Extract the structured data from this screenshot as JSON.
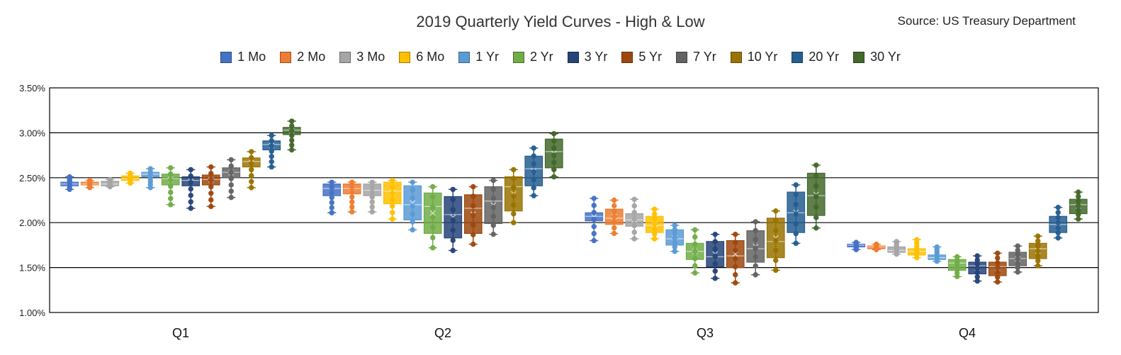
{
  "chart_data": {
    "type": "box",
    "title": "2019 Quarterly Yield Curves - High & Low",
    "source": "Source: US Treasury Department",
    "categories": [
      "Q1",
      "Q2",
      "Q3",
      "Q4"
    ],
    "ylim": [
      1.0,
      3.5
    ],
    "yticks": [
      1.0,
      1.5,
      2.0,
      2.5,
      3.0,
      3.5
    ],
    "ytick_labels": [
      "1.00%",
      "1.50%",
      "2.00%",
      "2.50%",
      "3.00%",
      "3.50%"
    ],
    "grid": true,
    "legend_position": "top",
    "series": [
      {
        "name": "1 Mo",
        "color": "#4472C4",
        "boxes": [
          {
            "min": 2.37,
            "q1": 2.41,
            "median": 2.43,
            "q3": 2.45,
            "max": 2.51
          },
          {
            "min": 2.11,
            "q1": 2.3,
            "median": 2.38,
            "q3": 2.43,
            "max": 2.45
          },
          {
            "min": 1.8,
            "q1": 2.02,
            "median": 2.07,
            "q3": 2.11,
            "max": 2.27
          },
          {
            "min": 1.7,
            "q1": 1.73,
            "median": 1.75,
            "q3": 1.76,
            "max": 1.78
          }
        ]
      },
      {
        "name": "2 Mo",
        "color": "#ED7D31",
        "boxes": [
          {
            "min": 2.39,
            "q1": 2.42,
            "median": 2.43,
            "q3": 2.45,
            "max": 2.47
          },
          {
            "min": 2.12,
            "q1": 2.32,
            "median": 2.38,
            "q3": 2.43,
            "max": 2.45
          },
          {
            "min": 1.88,
            "q1": 1.98,
            "median": 2.05,
            "q3": 2.15,
            "max": 2.25
          },
          {
            "min": 1.7,
            "q1": 1.71,
            "median": 1.73,
            "q3": 1.74,
            "max": 1.76
          }
        ]
      },
      {
        "name": "3 Mo",
        "color": "#A5A5A5",
        "boxes": [
          {
            "min": 2.4,
            "q1": 2.41,
            "median": 2.43,
            "q3": 2.46,
            "max": 2.48
          },
          {
            "min": 2.12,
            "q1": 2.3,
            "median": 2.36,
            "q3": 2.43,
            "max": 2.45
          },
          {
            "min": 1.82,
            "q1": 1.96,
            "median": 2.03,
            "q3": 2.1,
            "max": 2.26
          },
          {
            "min": 1.65,
            "q1": 1.67,
            "median": 1.69,
            "q3": 1.73,
            "max": 1.79
          }
        ]
      },
      {
        "name": "6 Mo",
        "color": "#FFC000",
        "boxes": [
          {
            "min": 2.44,
            "q1": 2.47,
            "median": 2.49,
            "q3": 2.52,
            "max": 2.55
          },
          {
            "min": 2.04,
            "q1": 2.21,
            "median": 2.35,
            "q3": 2.45,
            "max": 2.47
          },
          {
            "min": 1.82,
            "q1": 1.89,
            "median": 1.97,
            "q3": 2.07,
            "max": 2.15
          },
          {
            "min": 1.61,
            "q1": 1.64,
            "median": 1.68,
            "q3": 1.71,
            "max": 1.81
          }
        ]
      },
      {
        "name": "1 Yr",
        "color": "#5B9BD5",
        "boxes": [
          {
            "min": 2.39,
            "q1": 2.51,
            "median": 2.54,
            "q3": 2.56,
            "max": 2.6
          },
          {
            "min": 1.92,
            "q1": 2.03,
            "median": 2.2,
            "q3": 2.41,
            "max": 2.45
          },
          {
            "min": 1.68,
            "q1": 1.75,
            "median": 1.82,
            "q3": 1.92,
            "max": 1.97
          },
          {
            "min": 1.57,
            "q1": 1.59,
            "median": 1.61,
            "q3": 1.64,
            "max": 1.73
          }
        ]
      },
      {
        "name": "2 Yr",
        "color": "#70AD47",
        "boxes": [
          {
            "min": 2.2,
            "q1": 2.42,
            "median": 2.49,
            "q3": 2.54,
            "max": 2.61
          },
          {
            "min": 1.72,
            "q1": 1.88,
            "median": 2.18,
            "q3": 2.33,
            "max": 2.4
          },
          {
            "min": 1.44,
            "q1": 1.59,
            "median": 1.68,
            "q3": 1.77,
            "max": 1.92
          },
          {
            "min": 1.4,
            "q1": 1.47,
            "median": 1.55,
            "q3": 1.59,
            "max": 1.62
          }
        ]
      },
      {
        "name": "3 Yr",
        "color": "#264478",
        "boxes": [
          {
            "min": 2.16,
            "q1": 2.41,
            "median": 2.47,
            "q3": 2.51,
            "max": 2.59
          },
          {
            "min": 1.69,
            "q1": 1.83,
            "median": 2.09,
            "q3": 2.29,
            "max": 2.37
          },
          {
            "min": 1.38,
            "q1": 1.51,
            "median": 1.62,
            "q3": 1.79,
            "max": 1.87
          },
          {
            "min": 1.35,
            "q1": 1.43,
            "median": 1.52,
            "q3": 1.56,
            "max": 1.63
          }
        ]
      },
      {
        "name": "5 Yr",
        "color": "#9E480E",
        "boxes": [
          {
            "min": 2.18,
            "q1": 2.42,
            "median": 2.48,
            "q3": 2.53,
            "max": 2.62
          },
          {
            "min": 1.76,
            "q1": 1.88,
            "median": 2.16,
            "q3": 2.31,
            "max": 2.4
          },
          {
            "min": 1.33,
            "q1": 1.5,
            "median": 1.63,
            "q3": 1.8,
            "max": 1.87
          },
          {
            "min": 1.34,
            "q1": 1.41,
            "median": 1.51,
            "q3": 1.56,
            "max": 1.66
          }
        ]
      },
      {
        "name": "7 Yr",
        "color": "#636363",
        "boxes": [
          {
            "min": 2.28,
            "q1": 2.5,
            "median": 2.56,
            "q3": 2.61,
            "max": 2.7
          },
          {
            "min": 1.87,
            "q1": 1.99,
            "median": 2.24,
            "q3": 2.4,
            "max": 2.47
          },
          {
            "min": 1.42,
            "q1": 1.56,
            "median": 1.71,
            "q3": 1.91,
            "max": 2.01
          },
          {
            "min": 1.45,
            "q1": 1.52,
            "median": 1.6,
            "q3": 1.67,
            "max": 1.74
          }
        ]
      },
      {
        "name": "10 Yr",
        "color": "#997300",
        "boxes": [
          {
            "min": 2.39,
            "q1": 2.62,
            "median": 2.68,
            "q3": 2.72,
            "max": 2.79
          },
          {
            "min": 2.0,
            "q1": 2.13,
            "median": 2.4,
            "q3": 2.51,
            "max": 2.59
          },
          {
            "min": 1.47,
            "q1": 1.61,
            "median": 1.79,
            "q3": 2.05,
            "max": 2.13
          },
          {
            "min": 1.52,
            "q1": 1.6,
            "median": 1.71,
            "q3": 1.77,
            "max": 1.85
          }
        ]
      },
      {
        "name": "20 Yr",
        "color": "#255E91",
        "boxes": [
          {
            "min": 2.62,
            "q1": 2.81,
            "median": 2.87,
            "q3": 2.91,
            "max": 2.97
          },
          {
            "min": 2.3,
            "q1": 2.41,
            "median": 2.6,
            "q3": 2.74,
            "max": 2.83
          },
          {
            "min": 1.77,
            "q1": 1.89,
            "median": 2.11,
            "q3": 2.34,
            "max": 2.42
          },
          {
            "min": 1.83,
            "q1": 1.89,
            "median": 1.98,
            "q3": 2.07,
            "max": 2.17
          }
        ]
      },
      {
        "name": "30 Yr",
        "color": "#43682B",
        "boxes": [
          {
            "min": 2.81,
            "q1": 2.98,
            "median": 3.03,
            "q3": 3.06,
            "max": 3.13
          },
          {
            "min": 2.51,
            "q1": 2.61,
            "median": 2.79,
            "q3": 2.93,
            "max": 2.99
          },
          {
            "min": 1.94,
            "q1": 2.08,
            "median": 2.3,
            "q3": 2.55,
            "max": 2.64
          },
          {
            "min": 2.04,
            "q1": 2.1,
            "median": 2.2,
            "q3": 2.26,
            "max": 2.34
          }
        ]
      }
    ]
  }
}
